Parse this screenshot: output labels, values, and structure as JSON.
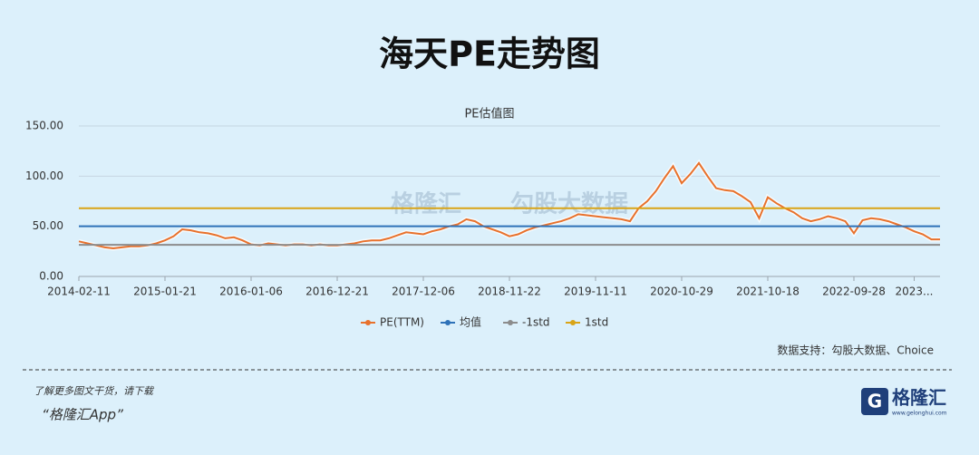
{
  "header": {
    "title": "海天PE走势图"
  },
  "chart_data": {
    "type": "line",
    "title": "PE估值图",
    "categories": [
      "2014-02-11",
      null,
      null,
      null,
      null,
      null,
      null,
      null,
      null,
      null,
      "2015-01-21",
      null,
      null,
      null,
      null,
      null,
      null,
      null,
      null,
      null,
      "2016-01-06",
      null,
      null,
      null,
      null,
      null,
      null,
      null,
      null,
      null,
      "2016-12-21",
      null,
      null,
      null,
      null,
      null,
      null,
      null,
      null,
      null,
      "2017-12-06",
      null,
      null,
      null,
      null,
      null,
      null,
      null,
      null,
      null,
      "2018-11-22",
      null,
      null,
      null,
      null,
      null,
      null,
      null,
      null,
      null,
      "2019-11-11",
      null,
      null,
      null,
      null,
      null,
      null,
      null,
      null,
      null,
      "2020-10-29",
      null,
      null,
      null,
      null,
      null,
      null,
      null,
      null,
      null,
      "2021-10-18",
      null,
      null,
      null,
      null,
      null,
      null,
      null,
      null,
      null,
      "2022-09-28",
      null,
      null,
      null,
      null,
      null,
      null,
      "2023...",
      null,
      null,
      null
    ],
    "series": [
      {
        "name": "PE(TTM)",
        "color": "#e8712c",
        "values": [
          35,
          33,
          31,
          29,
          28,
          29,
          30,
          30,
          31,
          33,
          36,
          40,
          47,
          46,
          44,
          43,
          41,
          38,
          39,
          36,
          32,
          31,
          33,
          32,
          31,
          32,
          32,
          31,
          32,
          31,
          31,
          32,
          33,
          35,
          36,
          36,
          38,
          41,
          44,
          43,
          42,
          45,
          47,
          50,
          52,
          57,
          55,
          50,
          47,
          44,
          40,
          42,
          46,
          49,
          51,
          53,
          55,
          58,
          62,
          61,
          60,
          59,
          58,
          57,
          55,
          68,
          75,
          85,
          98,
          110,
          93,
          102,
          113,
          100,
          88,
          86,
          85,
          80,
          74,
          58,
          79,
          73,
          68,
          64,
          58,
          55,
          57,
          60,
          58,
          55,
          43,
          56,
          58,
          57,
          55,
          52,
          49,
          45,
          42,
          37,
          37
        ]
      },
      {
        "name": "均值",
        "color": "#2e72b8",
        "value": 50
      },
      {
        "name": "-1std",
        "color": "#8c8c8c",
        "value": 31.5
      },
      {
        "name": "1std",
        "color": "#d9a416",
        "value": 68
      }
    ],
    "ylim": [
      0,
      150
    ],
    "yticks": [
      {
        "value": 0,
        "label": "0.00"
      },
      {
        "value": 50,
        "label": "50.00"
      },
      {
        "value": 100,
        "label": "100.00"
      },
      {
        "value": 150,
        "label": "150.00"
      }
    ],
    "grid": true,
    "source": "数据支持：勾股大数据、Choice",
    "watermark": [
      "格隆汇",
      "勾股大数据"
    ]
  },
  "footer": {
    "line1": "了解更多图文干货，请下载",
    "line2": "“格隆汇App”",
    "logo": "格隆汇",
    "logo_url": "www.gelonghui.com"
  }
}
